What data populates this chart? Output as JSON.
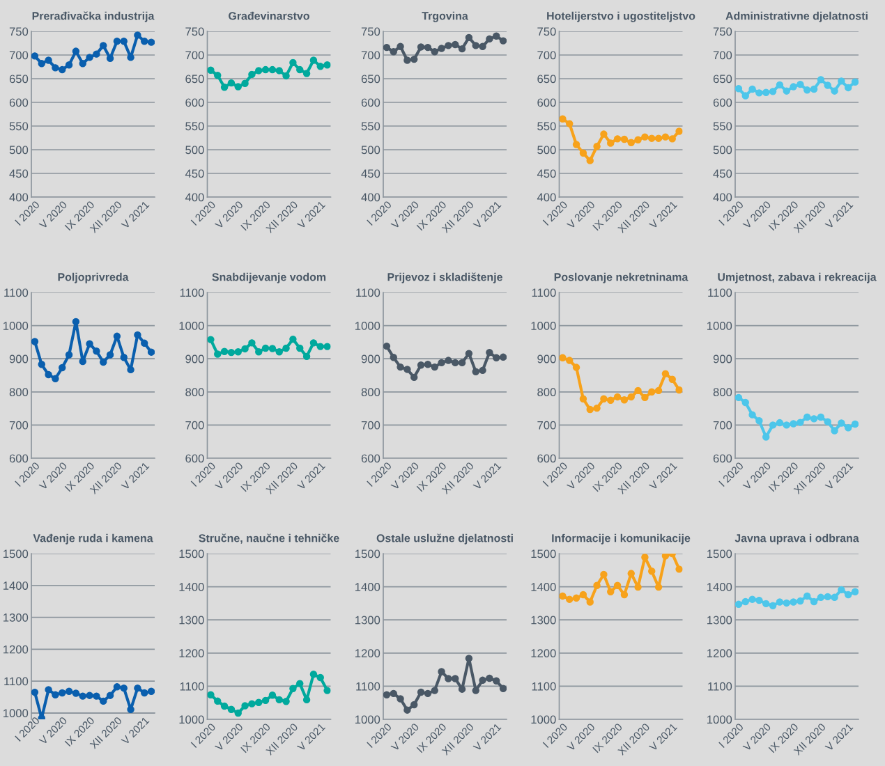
{
  "chart_data": [
    {
      "type": "line",
      "title": "Prerađivačka industrija",
      "categories": [
        "I 2020",
        null,
        null,
        null,
        "V 2020",
        null,
        null,
        null,
        "IX 2020",
        null,
        null,
        null,
        "XII 2020",
        null,
        null,
        null,
        "V 2021",
        null
      ],
      "series": [
        {
          "color": "#0a5fae",
          "values": [
            698,
            682,
            689,
            673,
            669,
            679,
            708,
            682,
            695,
            702,
            720,
            693,
            729,
            729,
            695,
            742,
            729,
            727
          ]
        }
      ],
      "ylim": [
        400,
        750
      ],
      "yticks": [
        400,
        450,
        500,
        550,
        600,
        650,
        700,
        750
      ],
      "grid": "y",
      "marker": "circle"
    },
    {
      "type": "line",
      "title": "Građevinarstvo",
      "categories": [
        "I 2020",
        null,
        null,
        null,
        "V 2020",
        null,
        null,
        null,
        "IX 2020",
        null,
        null,
        null,
        "XII 2020",
        null,
        null,
        null,
        "V 2021",
        null
      ],
      "series": [
        {
          "color": "#00a99d",
          "values": [
            668,
            657,
            632,
            641,
            633,
            640,
            659,
            667,
            669,
            669,
            667,
            656,
            684,
            669,
            661,
            689,
            676,
            679
          ]
        }
      ],
      "ylim": [
        400,
        750
      ],
      "yticks": [
        400,
        450,
        500,
        550,
        600,
        650,
        700,
        750
      ],
      "grid": "y",
      "marker": "circle"
    },
    {
      "type": "line",
      "title": "Trgovina",
      "categories": [
        "I 2020",
        null,
        null,
        null,
        "V 2020",
        null,
        null,
        null,
        "IX 2020",
        null,
        null,
        null,
        "XII 2020",
        null,
        null,
        null,
        "V 2021",
        null
      ],
      "series": [
        {
          "color": "#4a5866",
          "values": [
            716,
            707,
            718,
            689,
            691,
            717,
            716,
            707,
            714,
            720,
            722,
            713,
            737,
            720,
            718,
            734,
            740,
            730
          ]
        }
      ],
      "ylim": [
        400,
        750
      ],
      "yticks": [
        400,
        450,
        500,
        550,
        600,
        650,
        700,
        750
      ],
      "grid": "y",
      "marker": "circle"
    },
    {
      "type": "line",
      "title": "Hotelijerstvo i ugostiteljstvo",
      "categories": [
        "I 2020",
        null,
        null,
        null,
        "V 2020",
        null,
        null,
        null,
        "IX 2020",
        null,
        null,
        null,
        "XII 2020",
        null,
        null,
        null,
        "V 2021",
        null
      ],
      "series": [
        {
          "color": "#f7a21b",
          "values": [
            565,
            555,
            511,
            493,
            477,
            507,
            533,
            514,
            523,
            522,
            515,
            521,
            527,
            524,
            524,
            527,
            523,
            539
          ]
        }
      ],
      "ylim": [
        400,
        750
      ],
      "yticks": [
        400,
        450,
        500,
        550,
        600,
        650,
        700,
        750
      ],
      "grid": "y",
      "marker": "circle"
    },
    {
      "type": "line",
      "title": "Administrativne djelatnosti",
      "categories": [
        "I 2020",
        null,
        null,
        null,
        "V 2020",
        null,
        null,
        null,
        "IX 2020",
        null,
        null,
        null,
        "XII 2020",
        null,
        null,
        null,
        "V 2021",
        null
      ],
      "series": [
        {
          "color": "#4dc6ea",
          "values": [
            629,
            614,
            628,
            620,
            621,
            623,
            637,
            624,
            633,
            638,
            626,
            628,
            648,
            636,
            624,
            645,
            631,
            643
          ]
        }
      ],
      "ylim": [
        400,
        750
      ],
      "yticks": [
        400,
        450,
        500,
        550,
        600,
        650,
        700,
        750
      ],
      "grid": "y",
      "marker": "circle"
    },
    {
      "type": "line",
      "title": "Poljoprivreda",
      "categories": [
        "I 2020",
        null,
        null,
        null,
        "V 2020",
        null,
        null,
        null,
        "IX 2020",
        null,
        null,
        null,
        "XII 2020",
        null,
        null,
        null,
        "V 2021",
        null
      ],
      "series": [
        {
          "color": "#0a5fae",
          "values": [
            952,
            883,
            852,
            840,
            873,
            912,
            1012,
            892,
            945,
            923,
            890,
            912,
            968,
            904,
            867,
            972,
            947,
            920
          ]
        }
      ],
      "ylim": [
        600,
        1100
      ],
      "yticks": [
        600,
        700,
        800,
        900,
        1000,
        1100
      ],
      "grid": "y",
      "marker": "circle"
    },
    {
      "type": "line",
      "title": "Snabdijevanje vodom",
      "categories": [
        "I 2020",
        null,
        null,
        null,
        "V 2020",
        null,
        null,
        null,
        "IX 2020",
        null,
        null,
        null,
        "XII 2020",
        null,
        null,
        null,
        "V 2021",
        null
      ],
      "series": [
        {
          "color": "#00a99d",
          "values": [
            958,
            914,
            922,
            919,
            921,
            930,
            948,
            921,
            932,
            931,
            921,
            932,
            959,
            932,
            907,
            948,
            937,
            937
          ]
        }
      ],
      "ylim": [
        600,
        1100
      ],
      "yticks": [
        600,
        700,
        800,
        900,
        1000,
        1100
      ],
      "grid": "y",
      "marker": "circle"
    },
    {
      "type": "line",
      "title": "Prijevoz i skladištenje",
      "categories": [
        "I 2020",
        null,
        null,
        null,
        "V 2020",
        null,
        null,
        null,
        "IX 2020",
        null,
        null,
        null,
        "XII 2020",
        null,
        null,
        null,
        "V 2021",
        null
      ],
      "series": [
        {
          "color": "#4a5866",
          "values": [
            938,
            904,
            875,
            868,
            844,
            881,
            883,
            875,
            888,
            895,
            888,
            888,
            916,
            861,
            865,
            919,
            903,
            905
          ]
        }
      ],
      "ylim": [
        600,
        1100
      ],
      "yticks": [
        600,
        700,
        800,
        900,
        1000,
        1100
      ],
      "grid": "y",
      "marker": "circle"
    },
    {
      "type": "line",
      "title": "Poslovanje nekretninama",
      "categories": [
        "I 2020",
        null,
        null,
        null,
        "V 2020",
        null,
        null,
        null,
        "IX 2020",
        null,
        null,
        null,
        "XII 2020",
        null,
        null,
        null,
        "V 2021",
        null
      ],
      "series": [
        {
          "color": "#f7a21b",
          "values": [
            903,
            895,
            874,
            779,
            747,
            751,
            779,
            775,
            785,
            776,
            785,
            804,
            783,
            800,
            804,
            855,
            838,
            806
          ]
        }
      ],
      "ylim": [
        600,
        1100
      ],
      "yticks": [
        600,
        700,
        800,
        900,
        1000,
        1100
      ],
      "grid": "y",
      "marker": "circle"
    },
    {
      "type": "line",
      "title": "Umjetnost, zabava i rekreacija",
      "categories": [
        "I 2020",
        null,
        null,
        null,
        "V 2020",
        null,
        null,
        null,
        "IX 2020",
        null,
        null,
        null,
        "XII 2020",
        null,
        null,
        null,
        "V 2021",
        null
      ],
      "series": [
        {
          "color": "#4dc6ea",
          "values": [
            783,
            768,
            731,
            713,
            664,
            700,
            707,
            700,
            704,
            708,
            724,
            719,
            724,
            710,
            683,
            706,
            692,
            703
          ]
        }
      ],
      "ylim": [
        600,
        1100
      ],
      "yticks": [
        600,
        700,
        800,
        900,
        1000,
        1100
      ],
      "grid": "y",
      "marker": "circle"
    },
    {
      "type": "line",
      "title": "Vađenje ruda i kamena",
      "categories": [
        "I 2020",
        null,
        null,
        null,
        "V 2020",
        null,
        null,
        null,
        "IX 2020",
        null,
        null,
        null,
        "XII 2020",
        null,
        null,
        null,
        "V 2021",
        null
      ],
      "series": [
        {
          "color": "#0a5fae",
          "values": [
            1065,
            984,
            1073,
            1057,
            1063,
            1068,
            1062,
            1053,
            1055,
            1053,
            1037,
            1055,
            1082,
            1078,
            1011,
            1078,
            1063,
            1068
          ]
        }
      ],
      "ylim": [
        980,
        1500
      ],
      "yticks": [
        1000,
        1100,
        1200,
        1300,
        1400,
        1500
      ],
      "grid": "y",
      "marker": "circle"
    },
    {
      "type": "line",
      "title": "Stručne, naučne i tehničke",
      "categories": [
        "I 2020",
        null,
        null,
        null,
        "V 2020",
        null,
        null,
        null,
        "IX 2020",
        null,
        null,
        null,
        "XII 2020",
        null,
        null,
        null,
        "V 2021",
        null
      ],
      "series": [
        {
          "color": "#00a99d",
          "values": [
            1074,
            1055,
            1040,
            1030,
            1019,
            1041,
            1047,
            1051,
            1057,
            1073,
            1059,
            1054,
            1093,
            1108,
            1059,
            1136,
            1126,
            1087
          ]
        }
      ],
      "ylim": [
        1000,
        1500
      ],
      "yticks": [
        1000,
        1100,
        1200,
        1300,
        1400,
        1500
      ],
      "grid": "y",
      "marker": "circle"
    },
    {
      "type": "line",
      "title": "Ostale uslužne djelatnosti",
      "categories": [
        "I 2020",
        null,
        null,
        null,
        "V 2020",
        null,
        null,
        null,
        "IX 2020",
        null,
        null,
        null,
        "XII 2020",
        null,
        null,
        null,
        "V 2021",
        null
      ],
      "series": [
        {
          "color": "#4a5866",
          "values": [
            1074,
            1078,
            1062,
            1028,
            1044,
            1082,
            1078,
            1087,
            1144,
            1123,
            1123,
            1091,
            1184,
            1087,
            1118,
            1124,
            1116,
            1093
          ]
        }
      ],
      "ylim": [
        1000,
        1500
      ],
      "yticks": [
        1000,
        1100,
        1200,
        1300,
        1400,
        1500
      ],
      "grid": "y",
      "marker": "circle"
    },
    {
      "type": "line",
      "title": "Informacije i komunikacije",
      "categories": [
        "I 2020",
        null,
        null,
        null,
        "V 2020",
        null,
        null,
        null,
        "IX 2020",
        null,
        null,
        null,
        "XII 2020",
        null,
        null,
        null,
        "V 2021",
        null
      ],
      "series": [
        {
          "color": "#f7a21b",
          "values": [
            1372,
            1362,
            1366,
            1376,
            1354,
            1404,
            1437,
            1385,
            1404,
            1376,
            1440,
            1399,
            1489,
            1447,
            1399,
            1493,
            1500,
            1453
          ]
        }
      ],
      "ylim": [
        1000,
        1500
      ],
      "yticks": [
        1000,
        1100,
        1200,
        1300,
        1400,
        1500
      ],
      "grid": "y",
      "marker": "circle"
    },
    {
      "type": "line",
      "title": "Javna uprava i odbrana",
      "categories": [
        "I 2020",
        null,
        null,
        null,
        "V 2020",
        null,
        null,
        null,
        "IX 2020",
        null,
        null,
        null,
        "XII 2020",
        null,
        null,
        null,
        "V 2021",
        null
      ],
      "series": [
        {
          "color": "#4dc6ea",
          "values": [
            1347,
            1355,
            1362,
            1359,
            1349,
            1343,
            1354,
            1351,
            1354,
            1357,
            1372,
            1355,
            1368,
            1370,
            1368,
            1391,
            1376,
            1385
          ]
        }
      ],
      "ylim": [
        1000,
        1500
      ],
      "yticks": [
        1000,
        1100,
        1200,
        1300,
        1400,
        1500
      ],
      "grid": "y",
      "marker": "circle"
    }
  ]
}
